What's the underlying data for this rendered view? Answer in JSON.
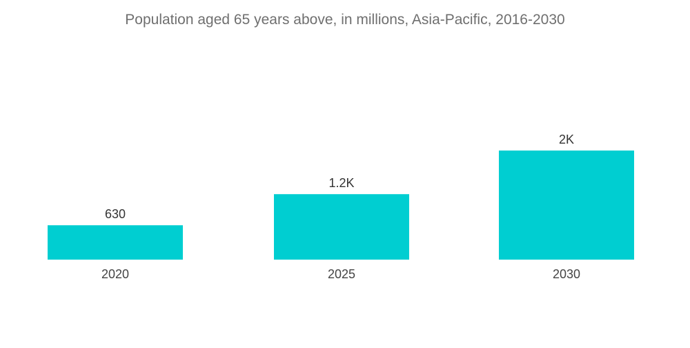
{
  "chart_data": {
    "type": "bar",
    "title": "Population aged 65 years above, in millions, Asia-Pacific, 2016-2030",
    "xlabel": "",
    "ylabel": "",
    "categories": [
      "2020",
      "2025",
      "2030"
    ],
    "values": [
      630,
      1200,
      2000
    ],
    "data_labels": [
      "630",
      "1.2K",
      "2K"
    ],
    "ylim": [
      0,
      2000
    ],
    "grid": false,
    "legend": "none",
    "bar_color": "#00CED1"
  }
}
